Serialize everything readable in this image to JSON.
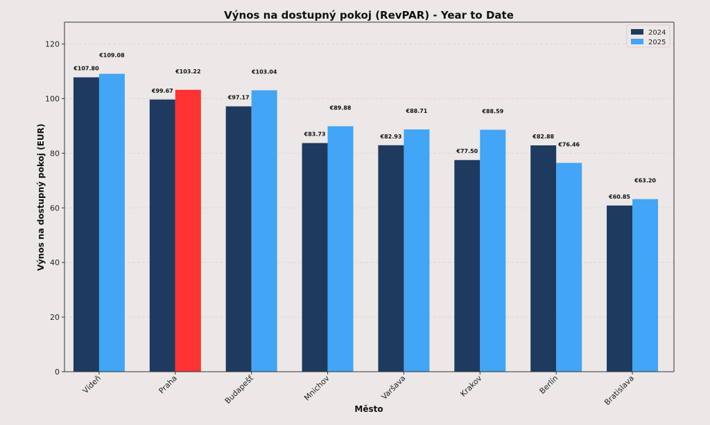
{
  "chart_data": {
    "type": "bar",
    "title": "Výnos na dostupný pokoj (RevPAR) - Year to Date",
    "xlabel": "Město",
    "ylabel": "Výnos na dostupný pokoj (EUR)",
    "categories": [
      "Vídeň",
      "Praha",
      "Budapešť",
      "Mnichov",
      "Varšava",
      "Krakov",
      "Berlín",
      "Bratislava"
    ],
    "series": [
      {
        "name": "2024",
        "color": "#1f3a5f",
        "values": [
          107.8,
          99.67,
          97.17,
          83.73,
          82.93,
          77.5,
          82.88,
          60.85
        ],
        "labels": [
          "€107.80",
          "€99.67",
          "€97.17",
          "€83.73",
          "€82.93",
          "€77.50",
          "€82.88",
          "€60.85"
        ]
      },
      {
        "name": "2025",
        "color": "#42a5f5",
        "highlight_color": "#ff3333",
        "highlight_category": "Praha",
        "values": [
          109.08,
          103.22,
          103.04,
          89.88,
          88.71,
          88.59,
          76.46,
          63.2
        ],
        "labels": [
          "€109.08",
          "€103.22",
          "€103.04",
          "€89.88",
          "€88.71",
          "€88.59",
          "€76.46",
          "€63.20"
        ]
      }
    ],
    "ylim": [
      0,
      128
    ],
    "yticks": [
      0,
      20,
      40,
      60,
      80,
      100,
      120
    ],
    "grid": true,
    "legend_position": "top-right"
  }
}
